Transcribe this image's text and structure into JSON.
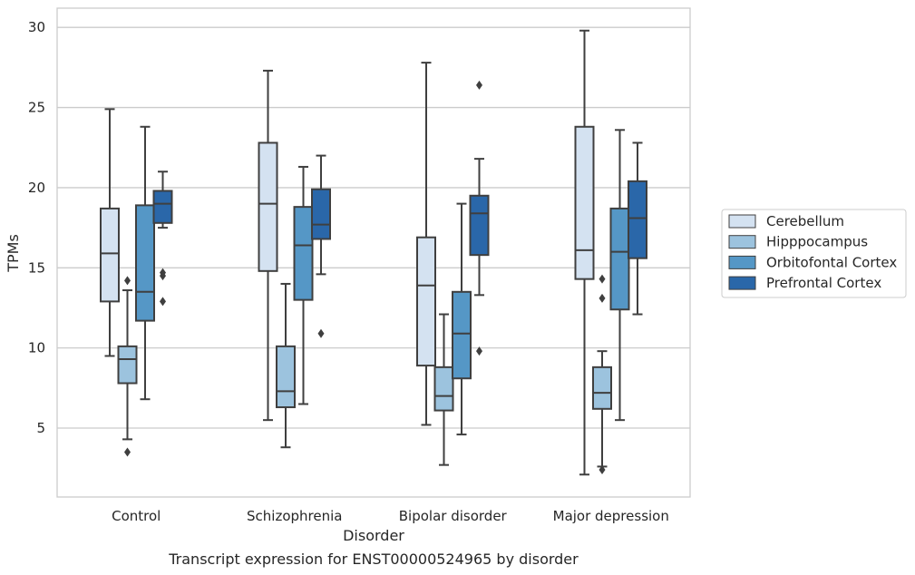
{
  "caption": "Transcript expression for ENST00000524965 by disorder",
  "chart_data": {
    "type": "boxplot",
    "xlabel": "Disorder",
    "ylabel": "TPMs",
    "ylim": [
      0.7,
      31.2
    ],
    "yticks": [
      5,
      10,
      15,
      20,
      25,
      30
    ],
    "grid": "horizontal",
    "legend_position": "right",
    "categories": [
      "Control",
      "Schizophrenia",
      "Bipolar disorder",
      "Major depression"
    ],
    "series": [
      {
        "name": "Cerebellum",
        "color": "#d4e2f1",
        "boxes": [
          {
            "whislo": 9.5,
            "q1": 12.9,
            "med": 15.9,
            "q3": 18.7,
            "whishi": 24.9,
            "fliers": []
          },
          {
            "whislo": 5.5,
            "q1": 14.8,
            "med": 19.0,
            "q3": 22.8,
            "whishi": 27.3,
            "fliers": []
          },
          {
            "whislo": 5.2,
            "q1": 8.9,
            "med": 13.9,
            "q3": 16.9,
            "whishi": 27.8,
            "fliers": []
          },
          {
            "whislo": 2.1,
            "q1": 14.3,
            "med": 16.1,
            "q3": 23.8,
            "whishi": 29.8,
            "fliers": []
          }
        ]
      },
      {
        "name": "Hipppocampus",
        "color": "#9cc3de",
        "boxes": [
          {
            "whislo": 4.3,
            "q1": 7.8,
            "med": 9.3,
            "q3": 10.1,
            "whishi": 13.6,
            "fliers": [
              3.5,
              14.2
            ]
          },
          {
            "whislo": 3.8,
            "q1": 6.3,
            "med": 7.3,
            "q3": 10.1,
            "whishi": 14.0,
            "fliers": []
          },
          {
            "whislo": 2.7,
            "q1": 6.1,
            "med": 7.0,
            "q3": 8.8,
            "whishi": 12.1,
            "fliers": []
          },
          {
            "whislo": 2.6,
            "q1": 6.2,
            "med": 7.2,
            "q3": 8.8,
            "whishi": 9.8,
            "fliers": [
              2.4,
              13.1,
              14.3
            ]
          }
        ]
      },
      {
        "name": "Orbitofontal Cortex",
        "color": "#5597c6",
        "boxes": [
          {
            "whislo": 6.8,
            "q1": 11.7,
            "med": 13.5,
            "q3": 18.9,
            "whishi": 23.8,
            "fliers": []
          },
          {
            "whislo": 6.5,
            "q1": 13.0,
            "med": 16.4,
            "q3": 18.8,
            "whishi": 21.3,
            "fliers": []
          },
          {
            "whislo": 4.6,
            "q1": 8.1,
            "med": 10.9,
            "q3": 13.5,
            "whishi": 19.0,
            "fliers": []
          },
          {
            "whislo": 5.5,
            "q1": 12.4,
            "med": 16.0,
            "q3": 18.7,
            "whishi": 23.6,
            "fliers": []
          }
        ]
      },
      {
        "name": "Prefrontal Cortex",
        "color": "#2a67a9",
        "boxes": [
          {
            "whislo": 17.5,
            "q1": 17.8,
            "med": 19.0,
            "q3": 19.8,
            "whishi": 21.0,
            "fliers": [
              12.9,
              14.5,
              14.7
            ]
          },
          {
            "whislo": 14.6,
            "q1": 16.8,
            "med": 17.7,
            "q3": 19.9,
            "whishi": 22.0,
            "fliers": [
              10.9
            ]
          },
          {
            "whislo": 13.3,
            "q1": 15.8,
            "med": 18.4,
            "q3": 19.5,
            "whishi": 21.8,
            "fliers": [
              9.8,
              26.4
            ]
          },
          {
            "whislo": 12.1,
            "q1": 15.6,
            "med": 18.1,
            "q3": 20.4,
            "whishi": 22.8,
            "fliers": []
          }
        ]
      }
    ]
  }
}
